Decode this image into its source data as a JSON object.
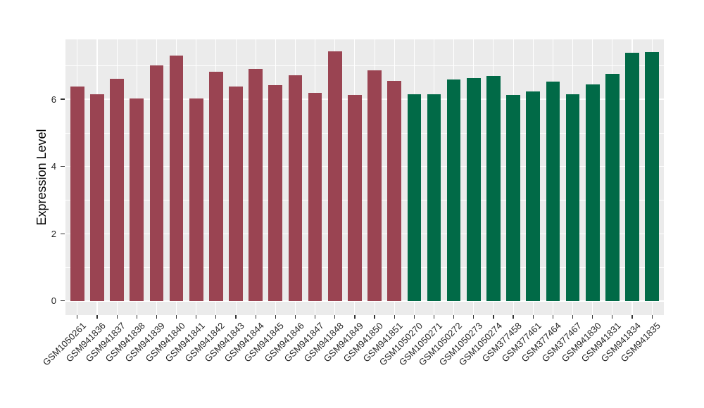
{
  "chart_data": {
    "type": "bar",
    "title": "",
    "xlabel": "",
    "ylabel": "Expression Level",
    "legend_position": "none",
    "grid": "on",
    "panel_background": "#EBEBEB",
    "gridline_color": "#FFFFFF",
    "tick_color": "#333333",
    "palette": [
      "#9A4452",
      "#016A47"
    ],
    "categories": [
      "GSM1050261",
      "GSM941836",
      "GSM941837",
      "GSM941838",
      "GSM941839",
      "GSM941840",
      "GSM941841",
      "GSM941842",
      "GSM941843",
      "GSM941844",
      "GSM941845",
      "GSM941846",
      "GSM941847",
      "GSM941848",
      "GSM941849",
      "GSM941850",
      "GSM941851",
      "GSM1050270",
      "GSM1050271",
      "GSM1050272",
      "GSM1050273",
      "GSM1050274",
      "GSM377458",
      "GSM377461",
      "GSM377464",
      "GSM377467",
      "GSM941830",
      "GSM941831",
      "GSM941834",
      "GSM941835"
    ],
    "values": [
      6.37,
      6.14,
      6.61,
      6.02,
      7.0,
      7.3,
      6.02,
      6.82,
      6.37,
      6.91,
      6.43,
      6.72,
      6.2,
      7.42,
      6.13,
      6.86,
      6.54,
      6.14,
      6.14,
      6.58,
      6.63,
      6.7,
      6.13,
      6.23,
      6.52,
      6.15,
      6.45,
      6.75,
      7.38,
      7.4
    ],
    "bar_groups": [
      0,
      0,
      0,
      0,
      0,
      0,
      0,
      0,
      0,
      0,
      0,
      0,
      0,
      0,
      0,
      0,
      0,
      1,
      1,
      1,
      1,
      1,
      1,
      1,
      1,
      1,
      1,
      1,
      1,
      1
    ],
    "yticks": [
      0,
      2,
      4,
      6
    ],
    "grid_major_y": [
      0,
      2,
      4,
      6
    ],
    "grid_minor_y": [
      1,
      3,
      5,
      7
    ],
    "ylim": [
      -0.41,
      7.78
    ]
  }
}
